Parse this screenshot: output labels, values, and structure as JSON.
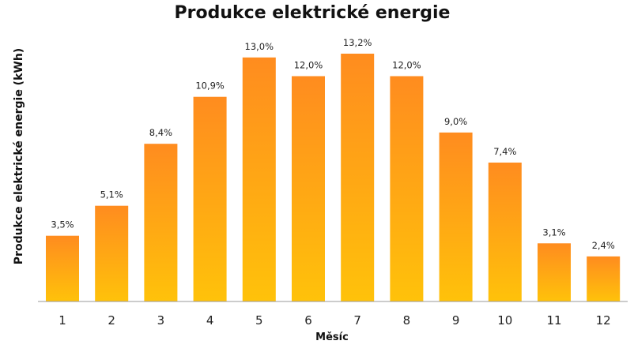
{
  "chart_data": {
    "type": "bar",
    "title": "Produkce elektrické energie",
    "xlabel": "Měsíc",
    "ylabel": "Produkce elektrické energie (kWh)",
    "categories": [
      "1",
      "2",
      "3",
      "4",
      "5",
      "6",
      "7",
      "8",
      "9",
      "10",
      "11",
      "12"
    ],
    "values": [
      3.5,
      5.1,
      8.4,
      10.9,
      13.0,
      12.0,
      13.2,
      12.0,
      9.0,
      7.4,
      3.1,
      2.4
    ],
    "value_labels": [
      "3,5%",
      "5,1%",
      "8,4%",
      "10,9%",
      "13,0%",
      "12,0%",
      "13,2%",
      "12,0%",
      "9,0%",
      "7,4%",
      "3,1%",
      "2,4%"
    ],
    "ylim": [
      0,
      13.2
    ],
    "grid": false,
    "legend": "none",
    "colors": {
      "bar_top": "#FF8C1F",
      "bar_bottom": "#FFC20A",
      "axis": "#999999"
    }
  }
}
